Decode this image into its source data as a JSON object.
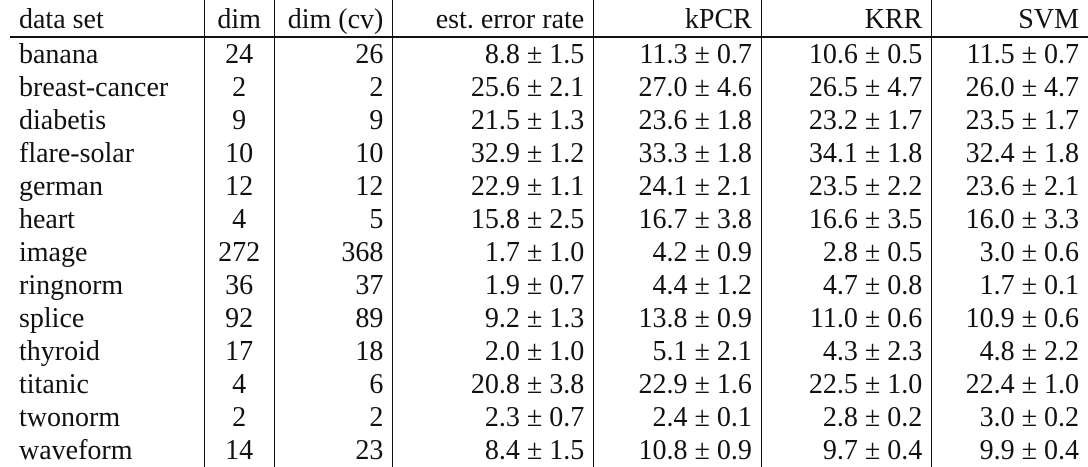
{
  "table": {
    "headers": [
      "data set",
      "dim",
      "dim (cv)",
      "est. error rate",
      "kPCR",
      "KRR",
      "SVM"
    ],
    "rows": [
      [
        "banana",
        "24",
        "26",
        "8.8 ± 1.5",
        "11.3 ± 0.7",
        "10.6 ± 0.5",
        "11.5 ± 0.7"
      ],
      [
        "breast-cancer",
        "2",
        "2",
        "25.6 ± 2.1",
        "27.0 ± 4.6",
        "26.5 ± 4.7",
        "26.0 ± 4.7"
      ],
      [
        "diabetis",
        "9",
        "9",
        "21.5 ± 1.3",
        "23.6 ± 1.8",
        "23.2 ± 1.7",
        "23.5 ± 1.7"
      ],
      [
        "flare-solar",
        "10",
        "10",
        "32.9 ± 1.2",
        "33.3 ± 1.8",
        "34.1 ± 1.8",
        "32.4 ± 1.8"
      ],
      [
        "german",
        "12",
        "12",
        "22.9 ± 1.1",
        "24.1 ± 2.1",
        "23.5 ± 2.2",
        "23.6 ± 2.1"
      ],
      [
        "heart",
        "4",
        "5",
        "15.8 ± 2.5",
        "16.7 ± 3.8",
        "16.6 ± 3.5",
        "16.0 ± 3.3"
      ],
      [
        "image",
        "272",
        "368",
        "1.7 ± 1.0",
        "4.2 ± 0.9",
        "2.8 ± 0.5",
        "3.0 ± 0.6"
      ],
      [
        "ringnorm",
        "36",
        "37",
        "1.9 ± 0.7",
        "4.4 ± 1.2",
        "4.7 ± 0.8",
        "1.7 ± 0.1"
      ],
      [
        "splice",
        "92",
        "89",
        "9.2 ± 1.3",
        "13.8 ± 0.9",
        "11.0 ± 0.6",
        "10.9 ± 0.6"
      ],
      [
        "thyroid",
        "17",
        "18",
        "2.0 ± 1.0",
        "5.1 ± 2.1",
        "4.3 ± 2.3",
        "4.8 ± 2.2"
      ],
      [
        "titanic",
        "4",
        "6",
        "20.8 ± 3.8",
        "22.9 ± 1.6",
        "22.5 ± 1.0",
        "22.4 ± 1.0"
      ],
      [
        "twonorm",
        "2",
        "2",
        "2.3 ± 0.7",
        "2.4 ± 0.1",
        "2.8 ± 0.2",
        "3.0 ± 0.2"
      ],
      [
        "waveform",
        "14",
        "23",
        "8.4 ± 1.5",
        "10.8 ± 0.9",
        "9.7 ± 0.4",
        "9.9 ± 0.4"
      ]
    ]
  }
}
